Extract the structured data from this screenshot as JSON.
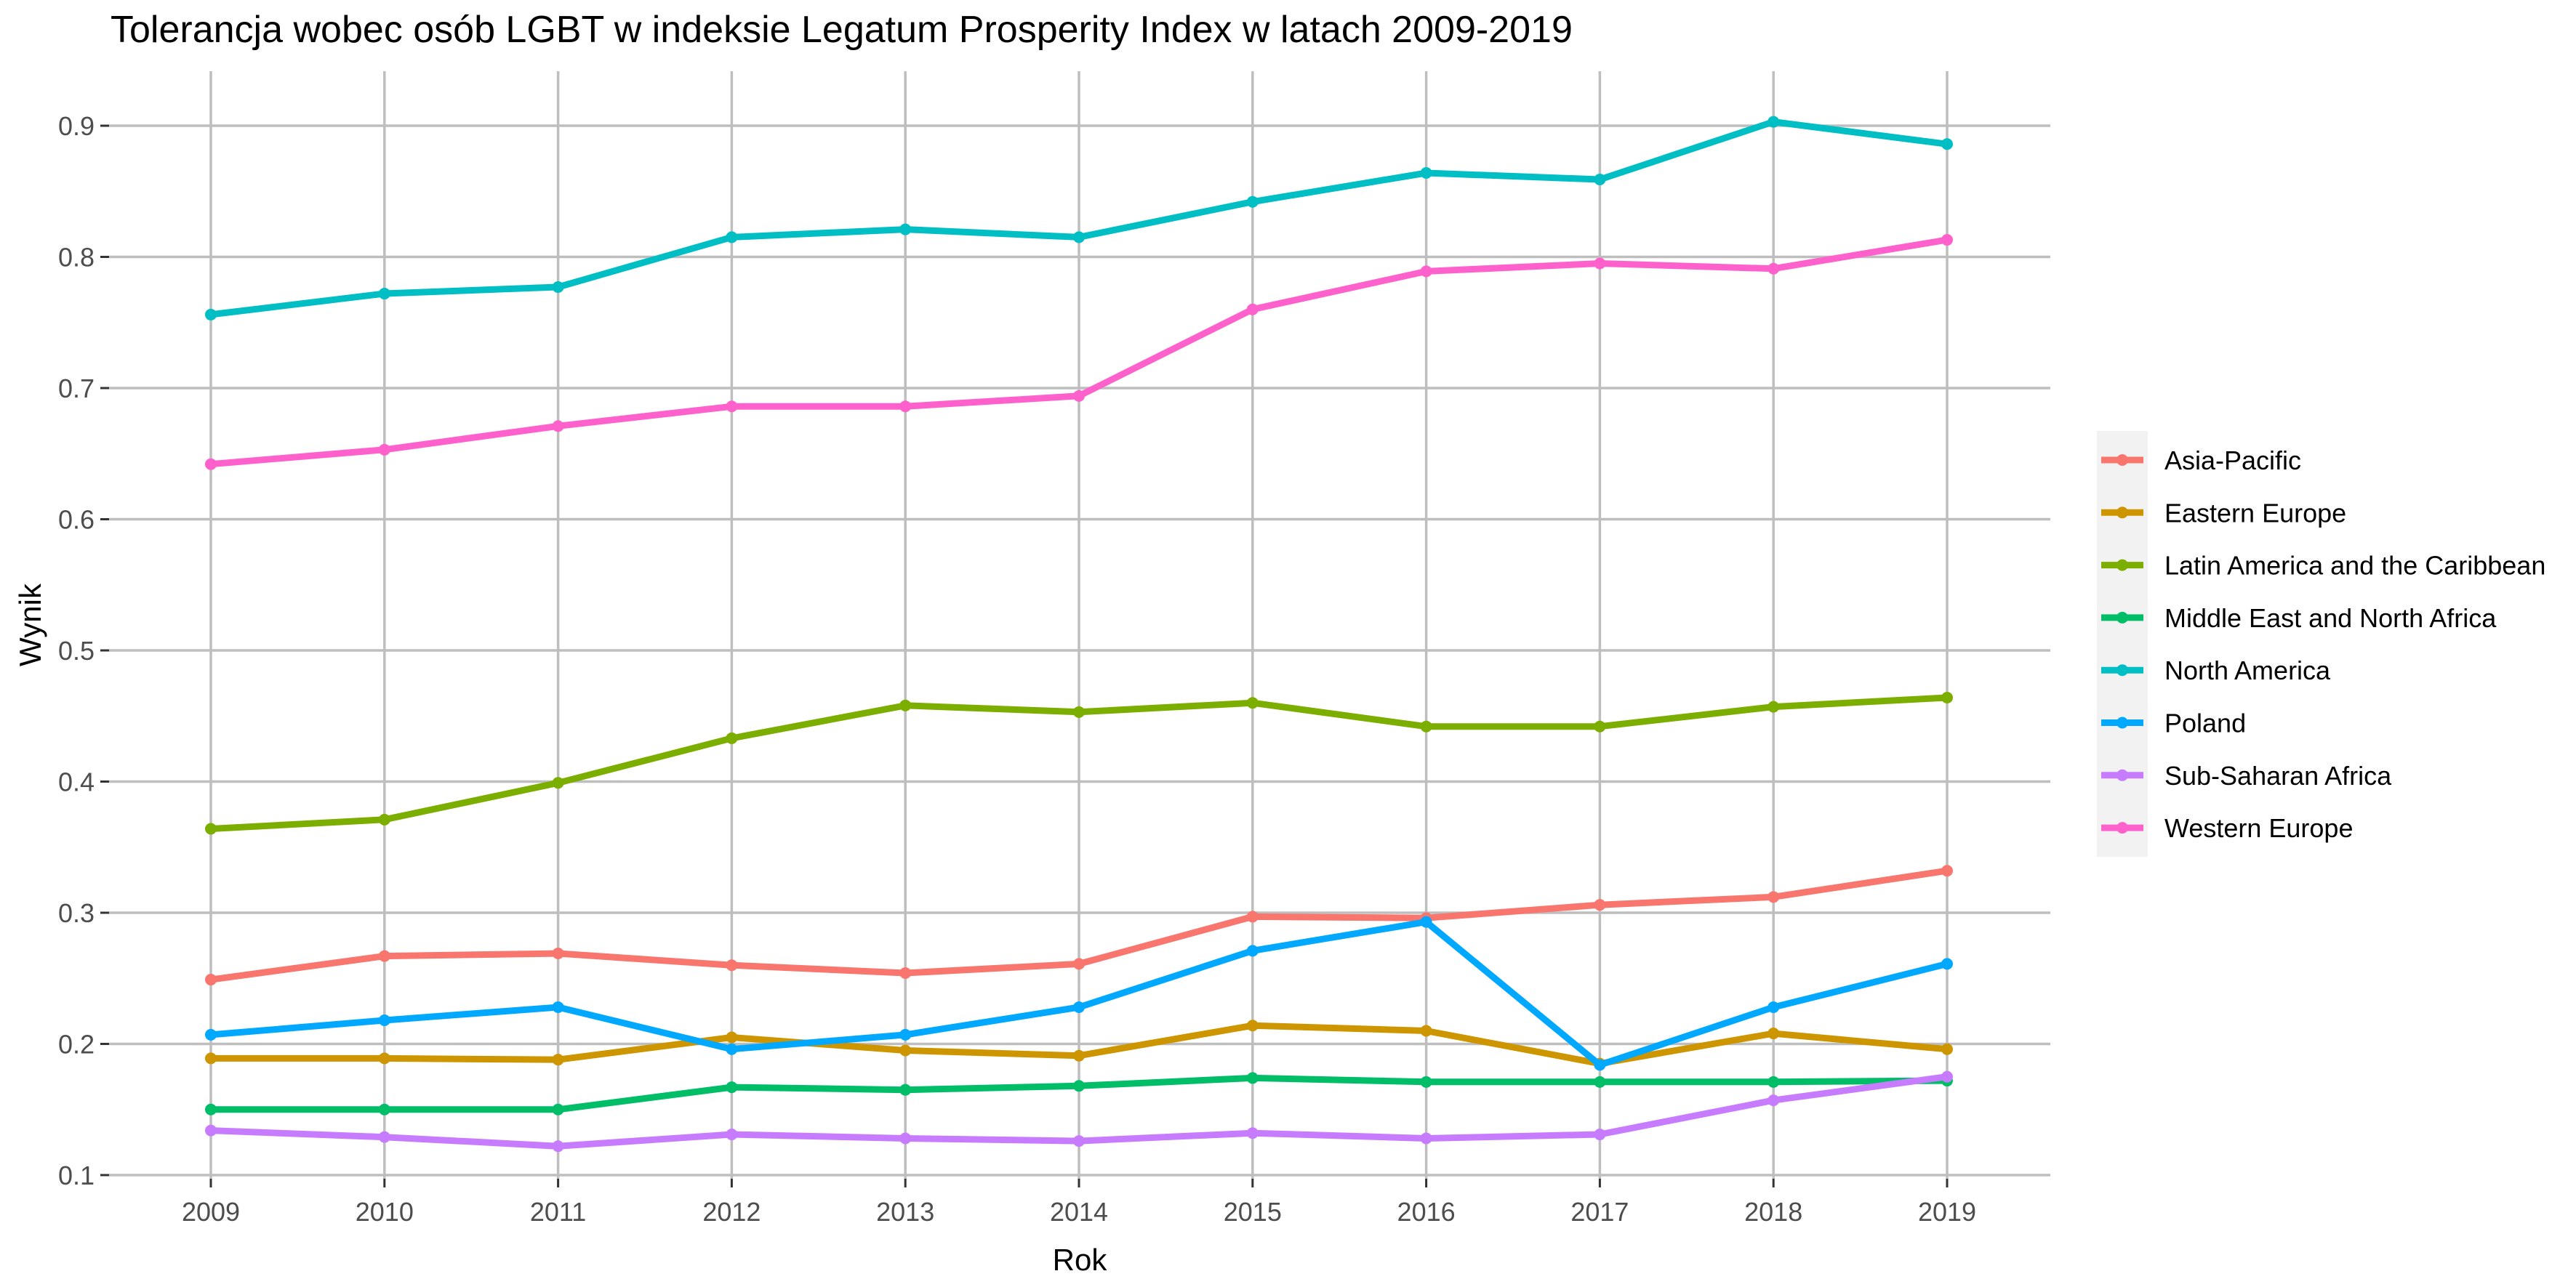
{
  "chart_data": {
    "type": "line",
    "title": "Tolerancja wobec osób LGBT w indeksie Legatum Prosperity Index w latach 2009-2019",
    "xlabel": "Rok",
    "ylabel": "Wynik",
    "x": [
      2009,
      2010,
      2011,
      2012,
      2013,
      2014,
      2015,
      2016,
      2017,
      2018,
      2019
    ],
    "x_tick_labels": [
      "2009",
      "2010",
      "2011",
      "2012",
      "2013",
      "2014",
      "2015",
      "2016",
      "2017",
      "2018",
      "2019"
    ],
    "ylim": [
      0.085,
      0.94
    ],
    "y_ticks": [
      0.1,
      0.2,
      0.3,
      0.4,
      0.5,
      0.6,
      0.7,
      0.8,
      0.9
    ],
    "y_tick_labels": [
      "0.1",
      "0.2",
      "0.3",
      "0.4",
      "0.5",
      "0.6",
      "0.7",
      "0.8",
      "0.9"
    ],
    "grid": true,
    "legend_position": "right",
    "series": [
      {
        "name": "Asia-Pacific",
        "color": "#F8766D",
        "values": [
          0.249,
          0.267,
          0.269,
          0.26,
          0.254,
          0.261,
          0.297,
          0.296,
          0.306,
          0.312,
          0.332
        ]
      },
      {
        "name": "Eastern Europe",
        "color": "#CD9600",
        "values": [
          0.189,
          0.189,
          0.188,
          0.205,
          0.195,
          0.191,
          0.214,
          0.21,
          0.185,
          0.208,
          0.196
        ]
      },
      {
        "name": "Latin America and the Caribbean",
        "color": "#7CAE00",
        "values": [
          0.364,
          0.371,
          0.399,
          0.433,
          0.458,
          0.453,
          0.46,
          0.442,
          0.442,
          0.457,
          0.464
        ]
      },
      {
        "name": "Middle East and North Africa",
        "color": "#00BE67",
        "values": [
          0.15,
          0.15,
          0.15,
          0.167,
          0.165,
          0.168,
          0.174,
          0.171,
          0.171,
          0.171,
          0.172
        ]
      },
      {
        "name": "North America",
        "color": "#00BFC4",
        "values": [
          0.756,
          0.772,
          0.777,
          0.815,
          0.821,
          0.815,
          0.842,
          0.864,
          0.859,
          0.903,
          0.886
        ]
      },
      {
        "name": "Poland",
        "color": "#00A9FF",
        "values": [
          0.207,
          0.218,
          0.228,
          0.196,
          0.207,
          0.228,
          0.271,
          0.293,
          0.184,
          0.228,
          0.261
        ]
      },
      {
        "name": "Sub-Saharan Africa",
        "color": "#C77CFF",
        "values": [
          0.134,
          0.129,
          0.122,
          0.131,
          0.128,
          0.126,
          0.132,
          0.128,
          0.131,
          0.157,
          0.175
        ]
      },
      {
        "name": "Western Europe",
        "color": "#FF61CC",
        "values": [
          0.642,
          0.653,
          0.671,
          0.686,
          0.686,
          0.694,
          0.76,
          0.789,
          0.795,
          0.791,
          0.813
        ]
      }
    ]
  }
}
